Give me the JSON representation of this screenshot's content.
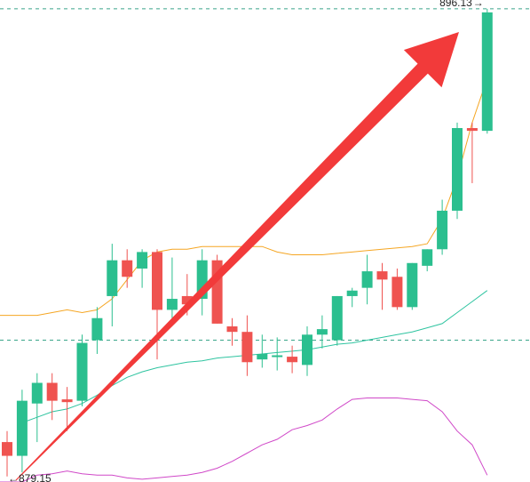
{
  "colors": {
    "up": "#26a69a",
    "up_fill": "#2bbf8f",
    "down": "#ef5350",
    "upper_band": "#f5a623",
    "middle_band": "#2ec4a0",
    "lower_band": "#d048c8",
    "arrow": "#f23a3a",
    "ref_line": "#3aa58a"
  },
  "annotations": {
    "high_label": "896.13",
    "high_arrow": "→",
    "low_label": "879.15",
    "low_arrow": "←"
  },
  "chart_data": {
    "type": "candlestick",
    "y_range": [
      878.95,
      896.45
    ],
    "high_price": 896.13,
    "low_price": 879.15,
    "candles": [
      {
        "o": 880.4,
        "h": 880.8,
        "l": 879.15,
        "c": 879.9
      },
      {
        "o": 879.9,
        "h": 882.3,
        "l": 879.3,
        "c": 881.9
      },
      {
        "o": 881.8,
        "h": 882.9,
        "l": 880.4,
        "c": 882.55
      },
      {
        "o": 882.55,
        "h": 882.9,
        "l": 881.2,
        "c": 881.9
      },
      {
        "o": 881.95,
        "h": 882.4,
        "l": 880.8,
        "c": 881.85
      },
      {
        "o": 881.9,
        "h": 884.3,
        "l": 881.7,
        "c": 884.0
      },
      {
        "o": 884.1,
        "h": 885.3,
        "l": 883.6,
        "c": 884.9
      },
      {
        "o": 885.7,
        "h": 887.6,
        "l": 884.6,
        "c": 887.0
      },
      {
        "o": 887.0,
        "h": 887.4,
        "l": 886.0,
        "c": 886.4
      },
      {
        "o": 886.7,
        "h": 887.4,
        "l": 886.0,
        "c": 887.3
      },
      {
        "o": 887.3,
        "h": 887.4,
        "l": 883.4,
        "c": 885.2
      },
      {
        "o": 885.2,
        "h": 887.1,
        "l": 884.9,
        "c": 885.6
      },
      {
        "o": 885.7,
        "h": 886.5,
        "l": 885.0,
        "c": 885.4
      },
      {
        "o": 885.6,
        "h": 887.4,
        "l": 885.0,
        "c": 887.0
      },
      {
        "o": 887.0,
        "h": 887.2,
        "l": 884.7,
        "c": 884.7
      },
      {
        "o": 884.6,
        "h": 884.9,
        "l": 883.9,
        "c": 884.4
      },
      {
        "o": 884.4,
        "h": 885.0,
        "l": 882.8,
        "c": 883.3
      },
      {
        "o": 883.4,
        "h": 884.3,
        "l": 883.1,
        "c": 883.6
      },
      {
        "o": 883.55,
        "h": 884.2,
        "l": 883.0,
        "c": 883.55
      },
      {
        "o": 883.5,
        "h": 883.9,
        "l": 882.9,
        "c": 883.3
      },
      {
        "o": 883.2,
        "h": 884.6,
        "l": 882.8,
        "c": 884.3
      },
      {
        "o": 884.3,
        "h": 885.0,
        "l": 883.8,
        "c": 884.5
      },
      {
        "o": 884.1,
        "h": 885.7,
        "l": 883.9,
        "c": 885.7
      },
      {
        "o": 885.7,
        "h": 886.0,
        "l": 885.3,
        "c": 885.9
      },
      {
        "o": 886.0,
        "h": 887.2,
        "l": 885.4,
        "c": 886.6
      },
      {
        "o": 886.6,
        "h": 886.9,
        "l": 885.2,
        "c": 886.3
      },
      {
        "o": 886.4,
        "h": 886.7,
        "l": 885.2,
        "c": 885.3
      },
      {
        "o": 885.3,
        "h": 886.9,
        "l": 885.2,
        "c": 886.9
      },
      {
        "o": 886.8,
        "h": 887.4,
        "l": 886.6,
        "c": 887.4
      },
      {
        "o": 887.4,
        "h": 889.2,
        "l": 887.2,
        "c": 888.8
      },
      {
        "o": 888.8,
        "h": 892.0,
        "l": 888.5,
        "c": 891.8
      },
      {
        "o": 891.8,
        "h": 892.0,
        "l": 889.8,
        "c": 891.7
      },
      {
        "o": 891.7,
        "h": 896.13,
        "l": 891.6,
        "c": 896.0
      }
    ],
    "bollinger": {
      "upper": [
        885.0,
        885.0,
        885.0,
        885.1,
        885.2,
        885.1,
        885.2,
        885.6,
        886.3,
        887.0,
        887.3,
        887.4,
        887.4,
        887.5,
        887.5,
        887.5,
        887.5,
        887.5,
        887.3,
        887.2,
        887.2,
        887.2,
        887.25,
        887.3,
        887.35,
        887.4,
        887.45,
        887.5,
        887.6,
        888.5,
        890.0,
        892.0,
        893.6
      ],
      "middle": [
        null,
        881.1,
        881.3,
        881.5,
        881.6,
        881.8,
        882.1,
        882.45,
        882.75,
        882.95,
        883.1,
        883.2,
        883.3,
        883.35,
        883.45,
        883.5,
        883.55,
        883.6,
        883.65,
        883.7,
        883.75,
        883.85,
        883.95,
        884.0,
        884.1,
        884.2,
        884.3,
        884.4,
        884.55,
        884.7,
        885.1,
        885.5,
        885.9
      ],
      "lower": [
        878.95,
        878.95,
        879.2,
        879.25,
        879.35,
        879.25,
        879.2,
        879.2,
        879.1,
        879.05,
        879.1,
        879.15,
        879.2,
        879.3,
        879.45,
        879.7,
        880.0,
        880.3,
        880.5,
        880.85,
        881.0,
        881.2,
        881.6,
        881.95,
        882.0,
        882.0,
        882.0,
        881.95,
        881.9,
        881.5,
        880.8,
        880.3,
        879.2
      ]
    }
  }
}
